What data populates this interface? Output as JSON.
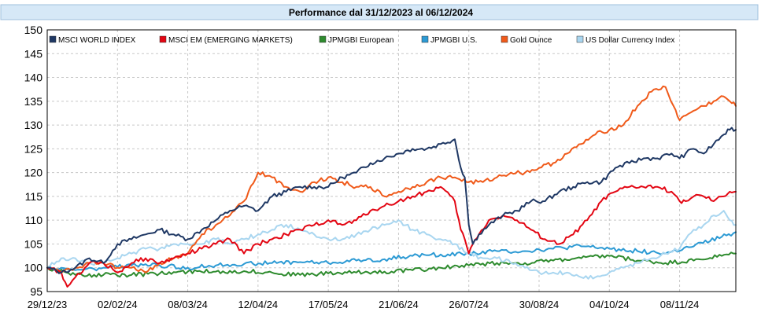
{
  "chart_data": {
    "type": "line",
    "title": "Performance dal 31/12/2023 al 06/12/2024",
    "xlabel": "",
    "ylabel": "",
    "ylim": [
      95,
      150
    ],
    "yticks": [
      95,
      100,
      105,
      110,
      115,
      120,
      125,
      130,
      135,
      140,
      145,
      150
    ],
    "xlim_days": [
      0,
      343
    ],
    "xticks": [
      {
        "label": "29/12/23",
        "day": 0
      },
      {
        "label": "02/02/24",
        "day": 35
      },
      {
        "label": "08/03/24",
        "day": 70
      },
      {
        "label": "12/04/24",
        "day": 105
      },
      {
        "label": "17/05/24",
        "day": 140
      },
      {
        "label": "21/06/24",
        "day": 175
      },
      {
        "label": "26/07/24",
        "day": 210
      },
      {
        "label": "30/08/24",
        "day": 245
      },
      {
        "label": "04/10/24",
        "day": 280
      },
      {
        "label": "08/11/24",
        "day": 315
      }
    ],
    "legend_position": "top-left",
    "series": [
      {
        "name": "MSCI WORLD INDEX",
        "color": "#1f3864",
        "x": [
          0,
          7,
          14,
          21,
          28,
          35,
          42,
          49,
          56,
          63,
          70,
          77,
          84,
          91,
          98,
          105,
          112,
          119,
          126,
          133,
          140,
          147,
          154,
          161,
          168,
          175,
          182,
          189,
          196,
          203,
          206,
          208,
          210,
          212,
          215,
          220,
          227,
          234,
          241,
          248,
          255,
          262,
          269,
          276,
          283,
          290,
          297,
          304,
          311,
          315,
          318,
          322,
          327,
          332,
          337,
          340,
          343
        ],
        "y": [
          100,
          99,
          100,
          102,
          101,
          105,
          106,
          107,
          108,
          107,
          106,
          108,
          110,
          112,
          113,
          112,
          115,
          116,
          117,
          117,
          117,
          119,
          120,
          122,
          123,
          124,
          125,
          125,
          126,
          127,
          121,
          119,
          109,
          105,
          107,
          109,
          111,
          112,
          114,
          114,
          116,
          117,
          118,
          118,
          121,
          122,
          123,
          123,
          124,
          123,
          124,
          125,
          124,
          126,
          128,
          129,
          129
        ]
      },
      {
        "name": "MSCI EM (EMERGING MARKETS)",
        "color": "#e30613",
        "x": [
          0,
          7,
          10,
          14,
          21,
          28,
          35,
          42,
          49,
          56,
          63,
          70,
          77,
          84,
          91,
          98,
          105,
          112,
          119,
          126,
          133,
          140,
          147,
          154,
          161,
          168,
          175,
          182,
          189,
          196,
          203,
          206,
          208,
          210,
          212,
          215,
          220,
          227,
          234,
          241,
          248,
          255,
          262,
          269,
          276,
          283,
          290,
          297,
          304,
          311,
          315,
          318,
          322,
          327,
          332,
          337,
          340,
          343
        ],
        "y": [
          100,
          99,
          96,
          98,
          101,
          101,
          99,
          101,
          102,
          101,
          102,
          103,
          104,
          105,
          106,
          103,
          105,
          106,
          107,
          108,
          109,
          110,
          109,
          110,
          112,
          113,
          114,
          115,
          116,
          117,
          114,
          108,
          106,
          103,
          105,
          107,
          110,
          111,
          110,
          108,
          106,
          105,
          107,
          110,
          114,
          116,
          117,
          117,
          117,
          116,
          114,
          114,
          115,
          115,
          114,
          115,
          116,
          116
        ]
      },
      {
        "name": "JPMGBI European",
        "color": "#2e8b2e",
        "x": [
          0,
          14,
          28,
          42,
          56,
          70,
          84,
          98,
          112,
          126,
          140,
          154,
          168,
          182,
          196,
          210,
          224,
          238,
          252,
          266,
          280,
          294,
          308,
          322,
          336,
          343
        ],
        "y": [
          100,
          98.5,
          98.5,
          98.5,
          98.8,
          99.2,
          99.2,
          99.3,
          99.0,
          98.5,
          98.8,
          99.0,
          99.2,
          99.5,
          100.0,
          100.5,
          101.0,
          101.0,
          101.5,
          102.0,
          102.5,
          101.5,
          101.0,
          101.5,
          102.5,
          103
        ]
      },
      {
        "name": "JPMGBI U.S.",
        "color": "#2c9ad4",
        "x": [
          0,
          14,
          28,
          42,
          56,
          70,
          84,
          98,
          112,
          126,
          140,
          154,
          168,
          182,
          196,
          210,
          224,
          238,
          252,
          266,
          280,
          294,
          308,
          322,
          336,
          343
        ],
        "y": [
          100,
          99.5,
          100,
          100.5,
          100.5,
          100,
          100.5,
          100.8,
          101.0,
          101.2,
          101.0,
          101.5,
          101.8,
          102.5,
          102.8,
          103.0,
          103.5,
          103.5,
          104.0,
          104.5,
          104.0,
          103.5,
          103.0,
          104.5,
          106.5,
          107.5
        ]
      },
      {
        "name": "Gold Ounce",
        "color": "#f05a1a",
        "x": [
          0,
          7,
          14,
          21,
          28,
          35,
          42,
          49,
          56,
          63,
          70,
          77,
          84,
          91,
          98,
          105,
          112,
          119,
          126,
          133,
          140,
          147,
          154,
          161,
          168,
          175,
          182,
          189,
          196,
          203,
          210,
          217,
          224,
          231,
          238,
          245,
          252,
          259,
          266,
          273,
          280,
          287,
          294,
          301,
          308,
          312,
          315,
          318,
          322,
          327,
          332,
          337,
          340,
          343
        ],
        "y": [
          100,
          99,
          100,
          101,
          101,
          100,
          100,
          99,
          101,
          102,
          103,
          107,
          109,
          111,
          114,
          120,
          119,
          117,
          116,
          118,
          119,
          118,
          117,
          117,
          115,
          116,
          117,
          118,
          119,
          119,
          118,
          118,
          119,
          120,
          120,
          121,
          122,
          124,
          126,
          128,
          129,
          130,
          134,
          137,
          138,
          134,
          131,
          132,
          133,
          134,
          135,
          136,
          135,
          134
        ]
      },
      {
        "name": "US Dollar Currency Index",
        "color": "#a9d6f0",
        "x": [
          0,
          7,
          14,
          21,
          28,
          35,
          42,
          49,
          56,
          63,
          70,
          77,
          84,
          91,
          98,
          105,
          112,
          119,
          126,
          133,
          140,
          147,
          154,
          161,
          168,
          175,
          182,
          189,
          196,
          203,
          210,
          217,
          224,
          231,
          238,
          245,
          252,
          259,
          266,
          273,
          280,
          287,
          294,
          301,
          308,
          315,
          318,
          322,
          327,
          332,
          337,
          340,
          343
        ],
        "y": [
          100,
          102,
          102,
          101,
          101,
          102,
          103,
          104,
          104,
          105,
          105,
          105,
          106,
          105,
          106,
          107,
          108,
          109,
          108,
          107,
          106,
          106,
          107,
          108,
          109,
          110,
          108,
          107,
          106,
          105,
          103,
          102,
          102,
          101,
          100,
          99,
          99,
          99,
          98,
          98,
          99,
          100,
          101,
          102,
          103,
          104,
          106,
          108,
          109,
          111,
          112,
          110,
          109
        ]
      }
    ]
  }
}
